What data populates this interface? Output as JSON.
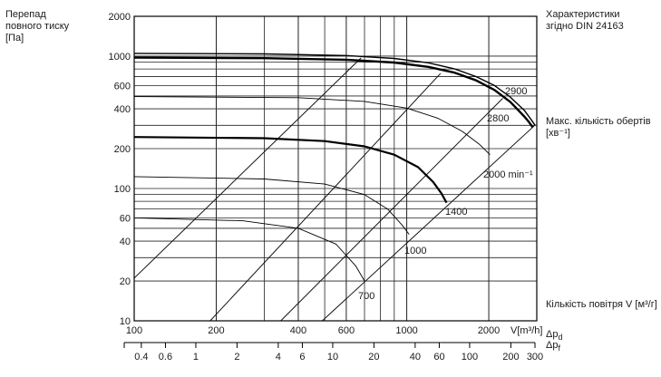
{
  "labels": {
    "ylabel_lines": [
      "Перепад",
      "повного тиску",
      "[Па]"
    ],
    "title_lines": [
      "Характеристики",
      "згідно DIN 24163"
    ],
    "speed_lines": [
      "Макс. кількість обертів",
      "[хв⁻¹]"
    ],
    "flow_label": "Кількість повітря V [м³/г]",
    "x_unit": "V[m³/h]",
    "dp_d": "Δp",
    "dp_d_sub": "d",
    "dp_f": "Δp",
    "dp_f_sub": "f"
  },
  "chart_data": {
    "type": "line",
    "x_scale": "log",
    "y_scale": "log",
    "xlim": [
      100,
      3000
    ],
    "ylim": [
      10,
      2000
    ],
    "x_ticks": [
      100,
      200,
      400,
      600,
      1000,
      2000
    ],
    "x_tick_labels": [
      "100",
      "200",
      "400",
      "600",
      "1000",
      "2000"
    ],
    "y_ticks": [
      10,
      20,
      40,
      60,
      100,
      200,
      400,
      600,
      1000,
      2000
    ],
    "y_tick_labels": [
      "10",
      "20",
      "40",
      "60",
      "100",
      "200",
      "400",
      "600",
      "1000",
      "2000"
    ],
    "dynamic_pressure_axis": {
      "ticks": [
        0.3,
        0.4,
        0.6,
        1,
        2,
        4,
        6,
        10,
        20,
        40,
        60,
        100,
        200,
        300
      ],
      "labeled": [
        "0.4",
        "0.6",
        "1",
        "2",
        "4",
        "6",
        "10",
        "20",
        "40",
        "60",
        "100",
        "200",
        "300"
      ],
      "display_labels": [
        "0.4",
        "0.6",
        "1",
        "2",
        "4",
        "6",
        "10",
        "20",
        "40",
        "60",
        "100",
        "200",
        "300"
      ]
    },
    "series": [
      {
        "name": "2900",
        "label": "2900",
        "x": [
          100,
          300,
          600,
          900,
          1200,
          1500,
          1800,
          2100,
          2400,
          2700,
          2850,
          2960
        ],
        "y": [
          1050,
          1040,
          1010,
          960,
          890,
          800,
          700,
          600,
          490,
          390,
          335,
          300
        ]
      },
      {
        "name": "2800",
        "label": "2800",
        "x": [
          100,
          300,
          600,
          900,
          1200,
          1500,
          1800,
          2100,
          2400,
          2700,
          2800,
          2900
        ],
        "y": [
          975,
          965,
          940,
          895,
          830,
          750,
          655,
          555,
          450,
          350,
          320,
          290
        ]
      },
      {
        "name": "2000",
        "label": "2000 min⁻¹",
        "x": [
          100,
          400,
          700,
          1000,
          1300,
          1600,
          1850,
          2020
        ],
        "y": [
          495,
          485,
          455,
          405,
          340,
          270,
          215,
          180
        ]
      },
      {
        "name": "1400",
        "label": "1400",
        "x": [
          100,
          300,
          500,
          700,
          900,
          1100,
          1250,
          1340,
          1400
        ],
        "y": [
          245,
          240,
          228,
          208,
          180,
          145,
          112,
          92,
          78
        ]
      },
      {
        "name": "1000",
        "label": "1000",
        "x": [
          100,
          300,
          500,
          700,
          850,
          960,
          1020
        ],
        "y": [
          123,
          118,
          108,
          90,
          70,
          53,
          45
        ]
      },
      {
        "name": "700",
        "label": "700",
        "x": [
          100,
          250,
          400,
          550,
          650,
          700
        ],
        "y": [
          60,
          57,
          50,
          38,
          26,
          20
        ]
      }
    ],
    "system_lines": [
      {
        "x": [
          100,
          680
        ],
        "y": [
          21,
          970
        ]
      },
      {
        "x": [
          190,
          1330
        ],
        "y": [
          10,
          740
        ]
      },
      {
        "x": [
          345,
          2250
        ],
        "y": [
          10,
          480
        ]
      },
      {
        "x": [
          490,
          2950
        ],
        "y": [
          10,
          300
        ]
      }
    ]
  }
}
